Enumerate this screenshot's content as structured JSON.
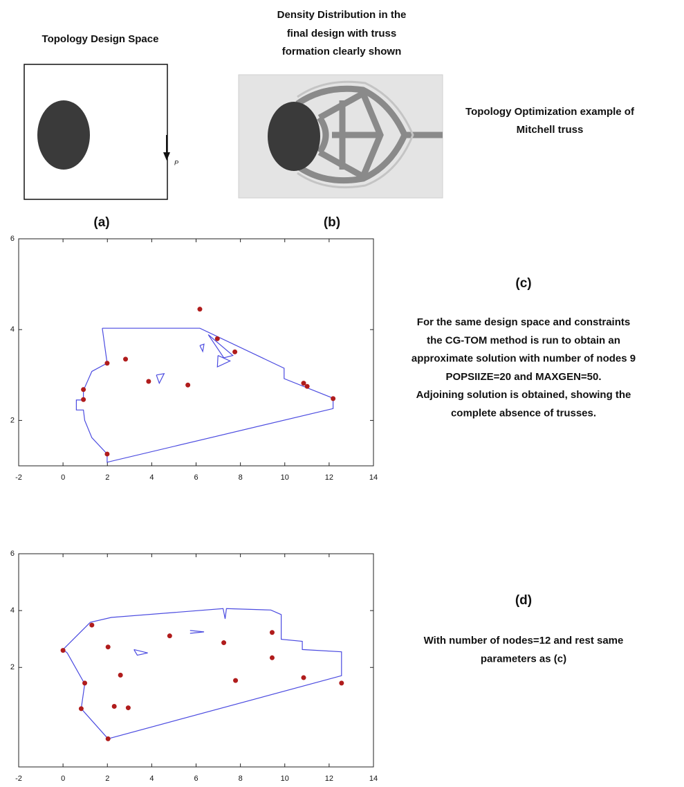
{
  "panels": {
    "a": {
      "title": "Topology Design Space",
      "label": "(a)",
      "load_label": "P"
    },
    "b": {
      "title": [
        "Density Distribution in the",
        "final design with truss",
        "formation clearly shown"
      ],
      "label": "(b)"
    },
    "caption": [
      "Topology Optimization example of",
      "Mitchell truss"
    ]
  },
  "chart_data": [
    {
      "type": "scatter",
      "label": "(c)",
      "description": [
        "For the same design space and constraints",
        "the CG-TOM method is run to obtain an",
        "approximate solution with number of nodes 9",
        "POPSIIZE=20 and MAXGEN=50.",
        "Adjoining solution is obtained, showing the",
        "complete absence of trusses."
      ],
      "xlim": [
        -2,
        14
      ],
      "ylim": [
        1,
        6
      ],
      "xticks": [
        -2,
        0,
        2,
        4,
        6,
        8,
        10,
        12,
        14
      ],
      "yticks": [
        2,
        4,
        6
      ],
      "series": [
        {
          "type": "line",
          "color": "#4a4ae0",
          "x": [
            1.77,
            6.17,
            9.97,
            9.97,
            12.18,
            12.18,
            1.99,
            1.99,
            1.3,
            0.98,
            0.92,
            0.6,
            0.6,
            0.92,
            0.92,
            1.3,
            1.99,
            1.77,
            null,
            6.55,
            7.66,
            7.25,
            6.55,
            null,
            6.99,
            7.53,
            6.96,
            6.99,
            null,
            4.21,
            4.56,
            4.34,
            4.21,
            null,
            6.17,
            6.36,
            6.3,
            6.17
          ],
          "values": [
            4.03,
            4.03,
            3.15,
            2.92,
            2.49,
            2.26,
            1.08,
            1.26,
            1.62,
            2.0,
            2.23,
            2.23,
            2.45,
            2.45,
            2.66,
            3.08,
            3.26,
            4.03,
            null,
            3.89,
            3.43,
            3.38,
            3.89,
            null,
            3.43,
            3.31,
            3.18,
            3.43,
            null,
            3.0,
            3.03,
            2.82,
            3.0,
            null,
            3.65,
            3.68,
            3.52,
            3.65
          ]
        },
        {
          "type": "scatter",
          "color": "#b01c1c",
          "x": [
            1.99,
            2.82,
            0.92,
            0.92,
            1.99,
            6.17,
            6.96,
            7.75,
            3.86,
            5.63,
            10.85,
            11.01,
            12.18
          ],
          "values": [
            3.26,
            3.35,
            2.68,
            2.46,
            1.26,
            4.45,
            3.8,
            3.51,
            2.86,
            2.78,
            2.82,
            2.75,
            2.48
          ]
        }
      ]
    },
    {
      "type": "scatter",
      "label": "(d)",
      "description": [
        "With number of nodes=12 and rest same",
        "parameters as  (c)"
      ],
      "xlim": [
        -2,
        14
      ],
      "ylim": [
        -1.5,
        6
      ],
      "xticks": [
        -2,
        0,
        2,
        4,
        6,
        8,
        10,
        12,
        14
      ],
      "yticks": [
        2,
        4,
        6
      ],
      "series": [
        {
          "type": "line",
          "color": "#4a4ae0",
          "x": [
            0.0,
            1.23,
            2.18,
            7.22,
            7.31,
            7.37,
            9.37,
            9.84,
            9.84,
            10.79,
            10.79,
            12.56,
            12.56,
            2.03,
            0.82,
            0.98,
            0.19,
            0.0,
            null,
            3.2,
            3.82,
            3.35,
            3.2,
            null,
            5.73,
            6.36,
            5.73
          ],
          "values": [
            2.63,
            3.59,
            3.76,
            4.07,
            3.71,
            4.07,
            4.02,
            3.86,
            2.99,
            2.92,
            2.63,
            2.55,
            1.71,
            -0.51,
            0.55,
            1.42,
            2.51,
            2.63,
            null,
            2.63,
            2.51,
            2.43,
            2.63,
            null,
            3.3,
            3.25,
            3.2
          ]
        },
        {
          "type": "scatter",
          "color": "#b01c1c",
          "x": [
            0.0,
            1.3,
            0.98,
            0.82,
            2.03,
            2.31,
            2.94,
            2.59,
            4.81,
            7.25,
            7.78,
            9.43,
            9.43,
            10.85,
            12.56,
            2.03
          ],
          "values": [
            2.6,
            3.49,
            1.45,
            0.55,
            2.72,
            0.63,
            0.58,
            1.73,
            3.11,
            2.87,
            1.54,
            3.23,
            2.34,
            1.64,
            1.45,
            -0.51
          ]
        }
      ]
    }
  ]
}
